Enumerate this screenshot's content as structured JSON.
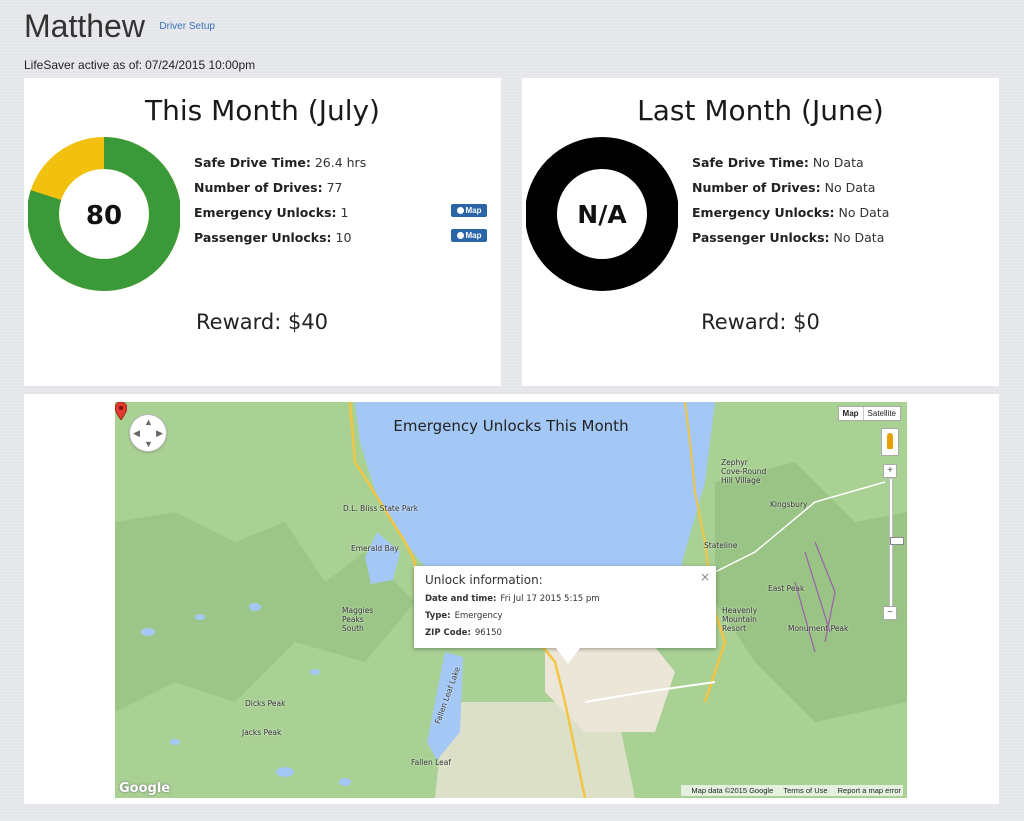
{
  "header": {
    "name": "Matthew",
    "setup_link": "Driver Setup",
    "active_label": "LifeSaver active as of:",
    "active_date": "07/24/2015 10:00pm"
  },
  "this_month": {
    "title": "This Month (July)",
    "score": "80",
    "score_value": 80,
    "score_max": 100,
    "stats": [
      {
        "label": "Safe Drive Time:",
        "value": "26.4 hrs"
      },
      {
        "label": "Number of Drives:",
        "value": "77"
      },
      {
        "label": "Emergency Unlocks:",
        "value": "1"
      },
      {
        "label": "Passenger Unlocks:",
        "value": "10"
      }
    ],
    "map_button": "Map",
    "reward": "Reward:  $40",
    "colors": {
      "good": "#3a9a3a",
      "bad": "#f2c10f"
    }
  },
  "last_month": {
    "title": "Last Month (June)",
    "score": "N/A",
    "stats": [
      {
        "label": "Safe Drive Time:",
        "value": "No Data"
      },
      {
        "label": "Number of Drives:",
        "value": "No Data"
      },
      {
        "label": "Emergency Unlocks:",
        "value": "No Data"
      },
      {
        "label": "Passenger Unlocks:",
        "value": "No Data"
      }
    ],
    "reward": "Reward: $0",
    "colors": {
      "ring": "#000000"
    }
  },
  "map": {
    "title": "Emergency Unlocks This Month",
    "map_type": {
      "map": "Map",
      "satellite": "Satellite"
    },
    "zoom_in": "+",
    "zoom_out": "−",
    "info": {
      "title": "Unlock information:",
      "close": "×",
      "date_label": "Date and time:",
      "date_value": "Fri Jul 17 2015 5:15 pm",
      "type_label": "Type:",
      "type_value": "Emergency",
      "zip_label": "ZIP Code:",
      "zip_value": "96150"
    },
    "places": [
      "D.L. Bliss State Park",
      "Emerald Bay",
      "Maggies Peaks South",
      "Dicks Peak",
      "Jacks Peak",
      "Fallen Leaf Lake",
      "Fallen Leaf",
      "Zephyr Cove-Round Hill Village",
      "Kingsbury",
      "Stateline",
      "East Peak",
      "Heavenly Mountain Resort",
      "Monument Peak"
    ],
    "footer": {
      "data": "Map data ©2015 Google",
      "terms": "Terms of Use",
      "report": "Report a map error"
    },
    "logo": "Google"
  }
}
